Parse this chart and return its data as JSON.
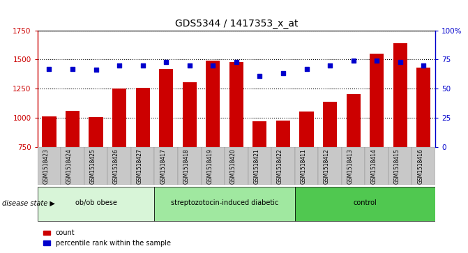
{
  "title": "GDS5344 / 1417353_x_at",
  "samples": [
    "GSM1518423",
    "GSM1518424",
    "GSM1518425",
    "GSM1518426",
    "GSM1518427",
    "GSM1518417",
    "GSM1518418",
    "GSM1518419",
    "GSM1518420",
    "GSM1518421",
    "GSM1518422",
    "GSM1518411",
    "GSM1518412",
    "GSM1518413",
    "GSM1518414",
    "GSM1518415",
    "GSM1518416"
  ],
  "counts": [
    1010,
    1060,
    1005,
    1250,
    1255,
    1420,
    1305,
    1490,
    1480,
    970,
    975,
    1050,
    1135,
    1200,
    1550,
    1640,
    1430
  ],
  "percentile_ranks": [
    67,
    67,
    66,
    70,
    70,
    73,
    70,
    70,
    73,
    61,
    63,
    67,
    70,
    74,
    74,
    73,
    70
  ],
  "groups": [
    {
      "label": "ob/ob obese",
      "start": 0,
      "end": 5,
      "color": "#d8f5d8"
    },
    {
      "label": "streptozotocin-induced diabetic",
      "start": 5,
      "end": 11,
      "color": "#a0e8a0"
    },
    {
      "label": "control",
      "start": 11,
      "end": 17,
      "color": "#50c850"
    }
  ],
  "ylim_left": [
    750,
    1750
  ],
  "ylim_right": [
    0,
    100
  ],
  "yticks_left": [
    750,
    1000,
    1250,
    1500,
    1750
  ],
  "yticks_right": [
    0,
    25,
    50,
    75,
    100
  ],
  "bar_color": "#cc0000",
  "dot_color": "#0000cc",
  "tick_bg_color": "#c8c8c8",
  "left_axis_color": "#cc0000",
  "right_axis_color": "#0000cc",
  "legend_items": [
    "count",
    "percentile rank within the sample"
  ],
  "disease_state_label": "disease state"
}
